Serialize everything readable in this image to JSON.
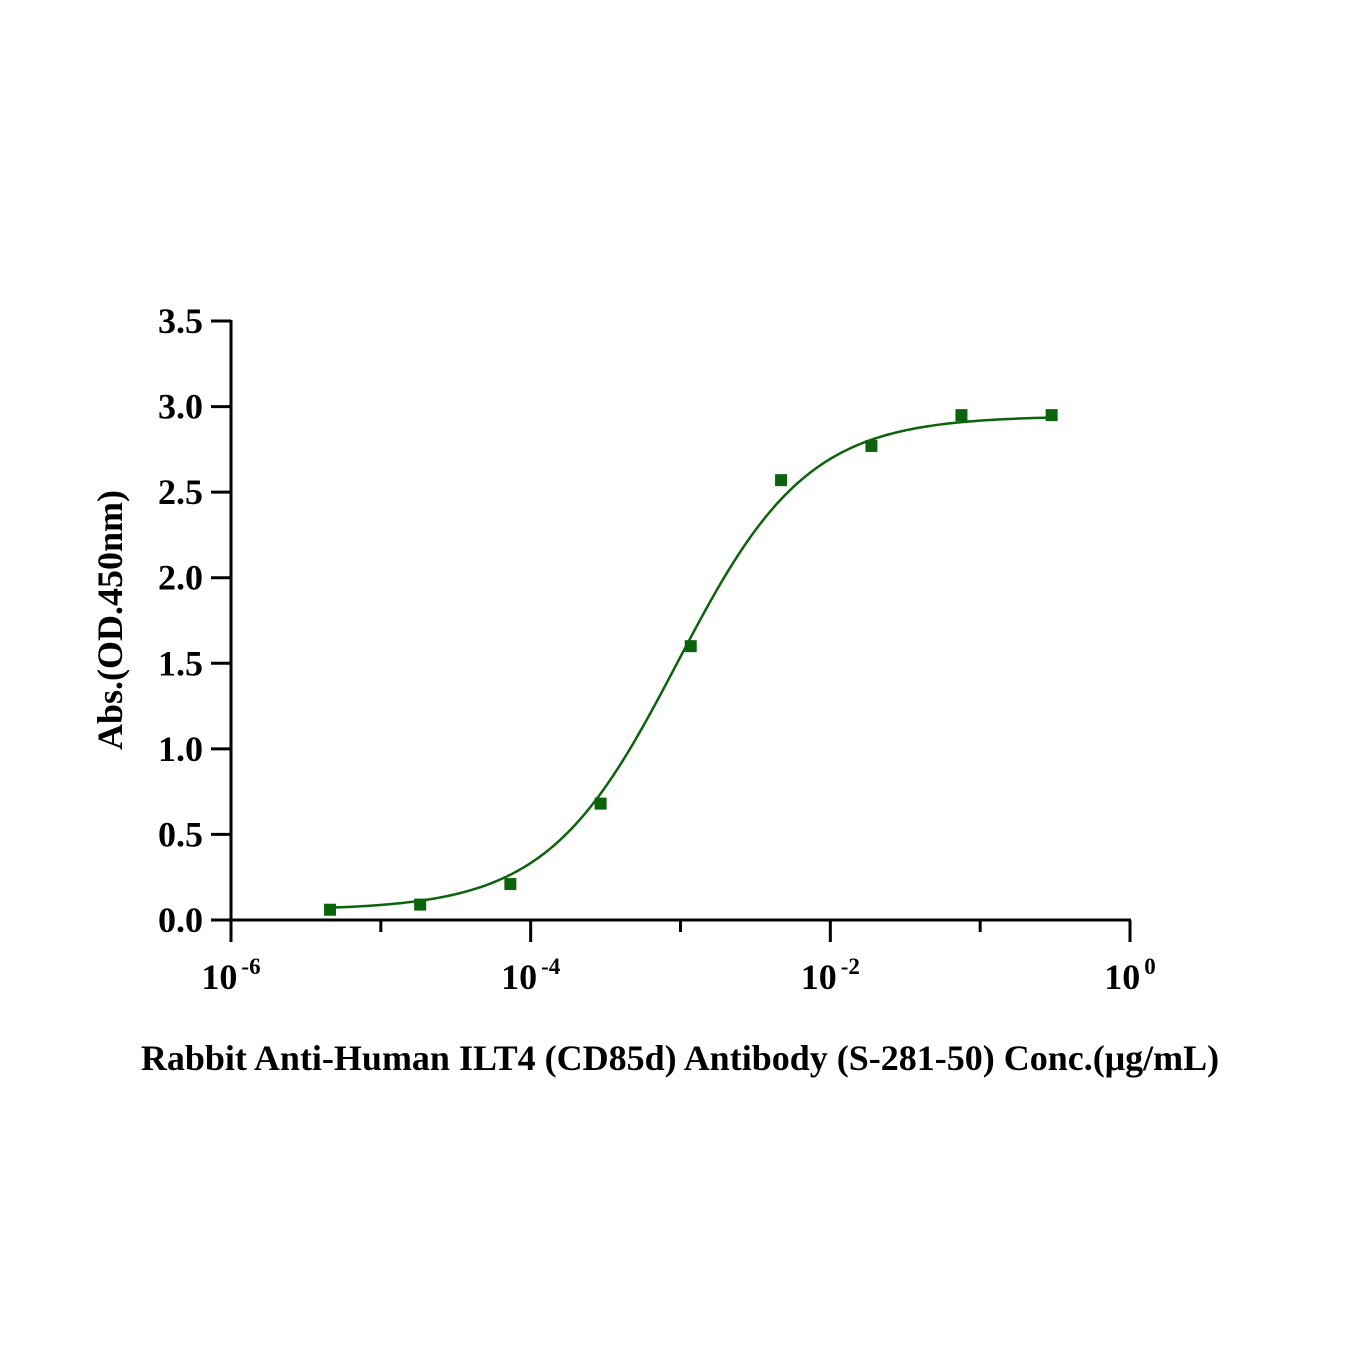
{
  "chart_data": {
    "type": "scatter",
    "title": "",
    "xlabel": "Rabbit Anti-Human ILT4 (CD85d) Antibody (S-281-50)  Conc.(μg/mL)",
    "ylabel": "Abs.(OD.450nm)",
    "x_scale": "log",
    "xlim": [
      1e-06,
      1
    ],
    "ylim": [
      0,
      3.5
    ],
    "grid": false,
    "legend": "none",
    "x_ticks": [
      {
        "base": "10",
        "exp": "-6",
        "value": 1e-06
      },
      {
        "base": "10",
        "exp": "-4",
        "value": 0.0001
      },
      {
        "base": "10",
        "exp": "-2",
        "value": 0.01
      },
      {
        "base": "10",
        "exp": "0",
        "value": 1
      }
    ],
    "y_ticks": [
      "0.0",
      "0.5",
      "1.0",
      "1.5",
      "2.0",
      "2.5",
      "3.0",
      "3.5"
    ],
    "series": [
      {
        "color": "#0b640b",
        "marker": "square",
        "fit": "four-parameter logistic",
        "x": [
          4.58e-06,
          1.83e-05,
          7.32e-05,
          0.000293,
          0.00117,
          0.00469,
          0.0188,
          0.075,
          0.3
        ],
        "y": [
          0.06,
          0.09,
          0.21,
          0.68,
          1.6,
          2.57,
          2.77,
          2.95,
          2.95
        ]
      }
    ],
    "fit_params": {
      "bottom": 0.058,
      "top": 2.945,
      "ec50": 0.00095,
      "hill": 1.0
    }
  }
}
